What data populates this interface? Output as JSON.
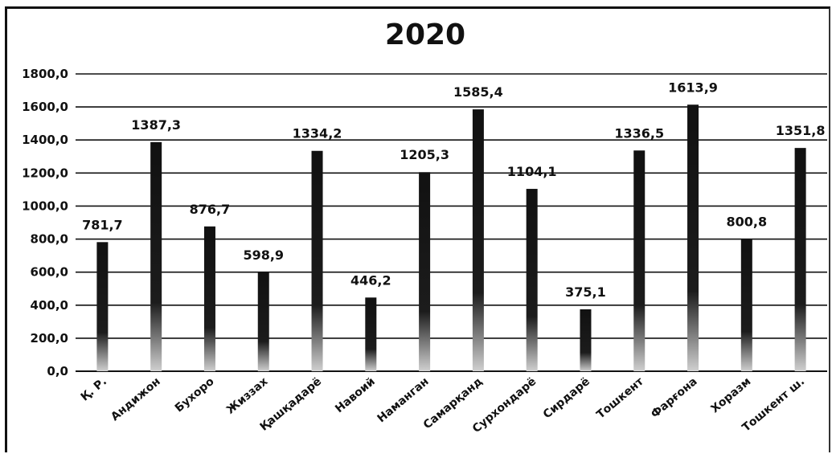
{
  "chart_data": {
    "type": "bar",
    "title": "2020",
    "xlabel": "",
    "ylabel": "",
    "ylim": [
      0,
      1800
    ],
    "y_ticks": [
      "0,0",
      "200,0",
      "400,0",
      "600,0",
      "800,0",
      "1000,0",
      "1200,0",
      "1400,0",
      "1600,0",
      "1800,0"
    ],
    "categories": [
      "Қ. Р.",
      "Андижон",
      "Бухоро",
      "Жиззах",
      "Қашқадарё",
      "Навоий",
      "Наманган",
      "Самарқанд",
      "Сурхондарё",
      "Сирдарё",
      "Тошкент",
      "Фарғона",
      "Хоразм",
      "Тошкент ш."
    ],
    "values": [
      781.7,
      1387.3,
      876.7,
      598.9,
      1334.2,
      446.2,
      1205.3,
      1585.4,
      1104.1,
      375.1,
      1336.5,
      1613.9,
      800.8,
      1351.8
    ],
    "value_labels": [
      "781,7",
      "1387,3",
      "876,7",
      "598,9",
      "1334,2",
      "446,2",
      "1205,3",
      "1585,4",
      "1104,1",
      "375,1",
      "1336,5",
      "1613,9",
      "800,8",
      "1351,8"
    ],
    "grid": true,
    "legend": "none",
    "colors": {
      "bar_top": "#111111",
      "bar_bottom": "#c8c8c8",
      "grid": "#111111",
      "text": "#111111"
    }
  }
}
